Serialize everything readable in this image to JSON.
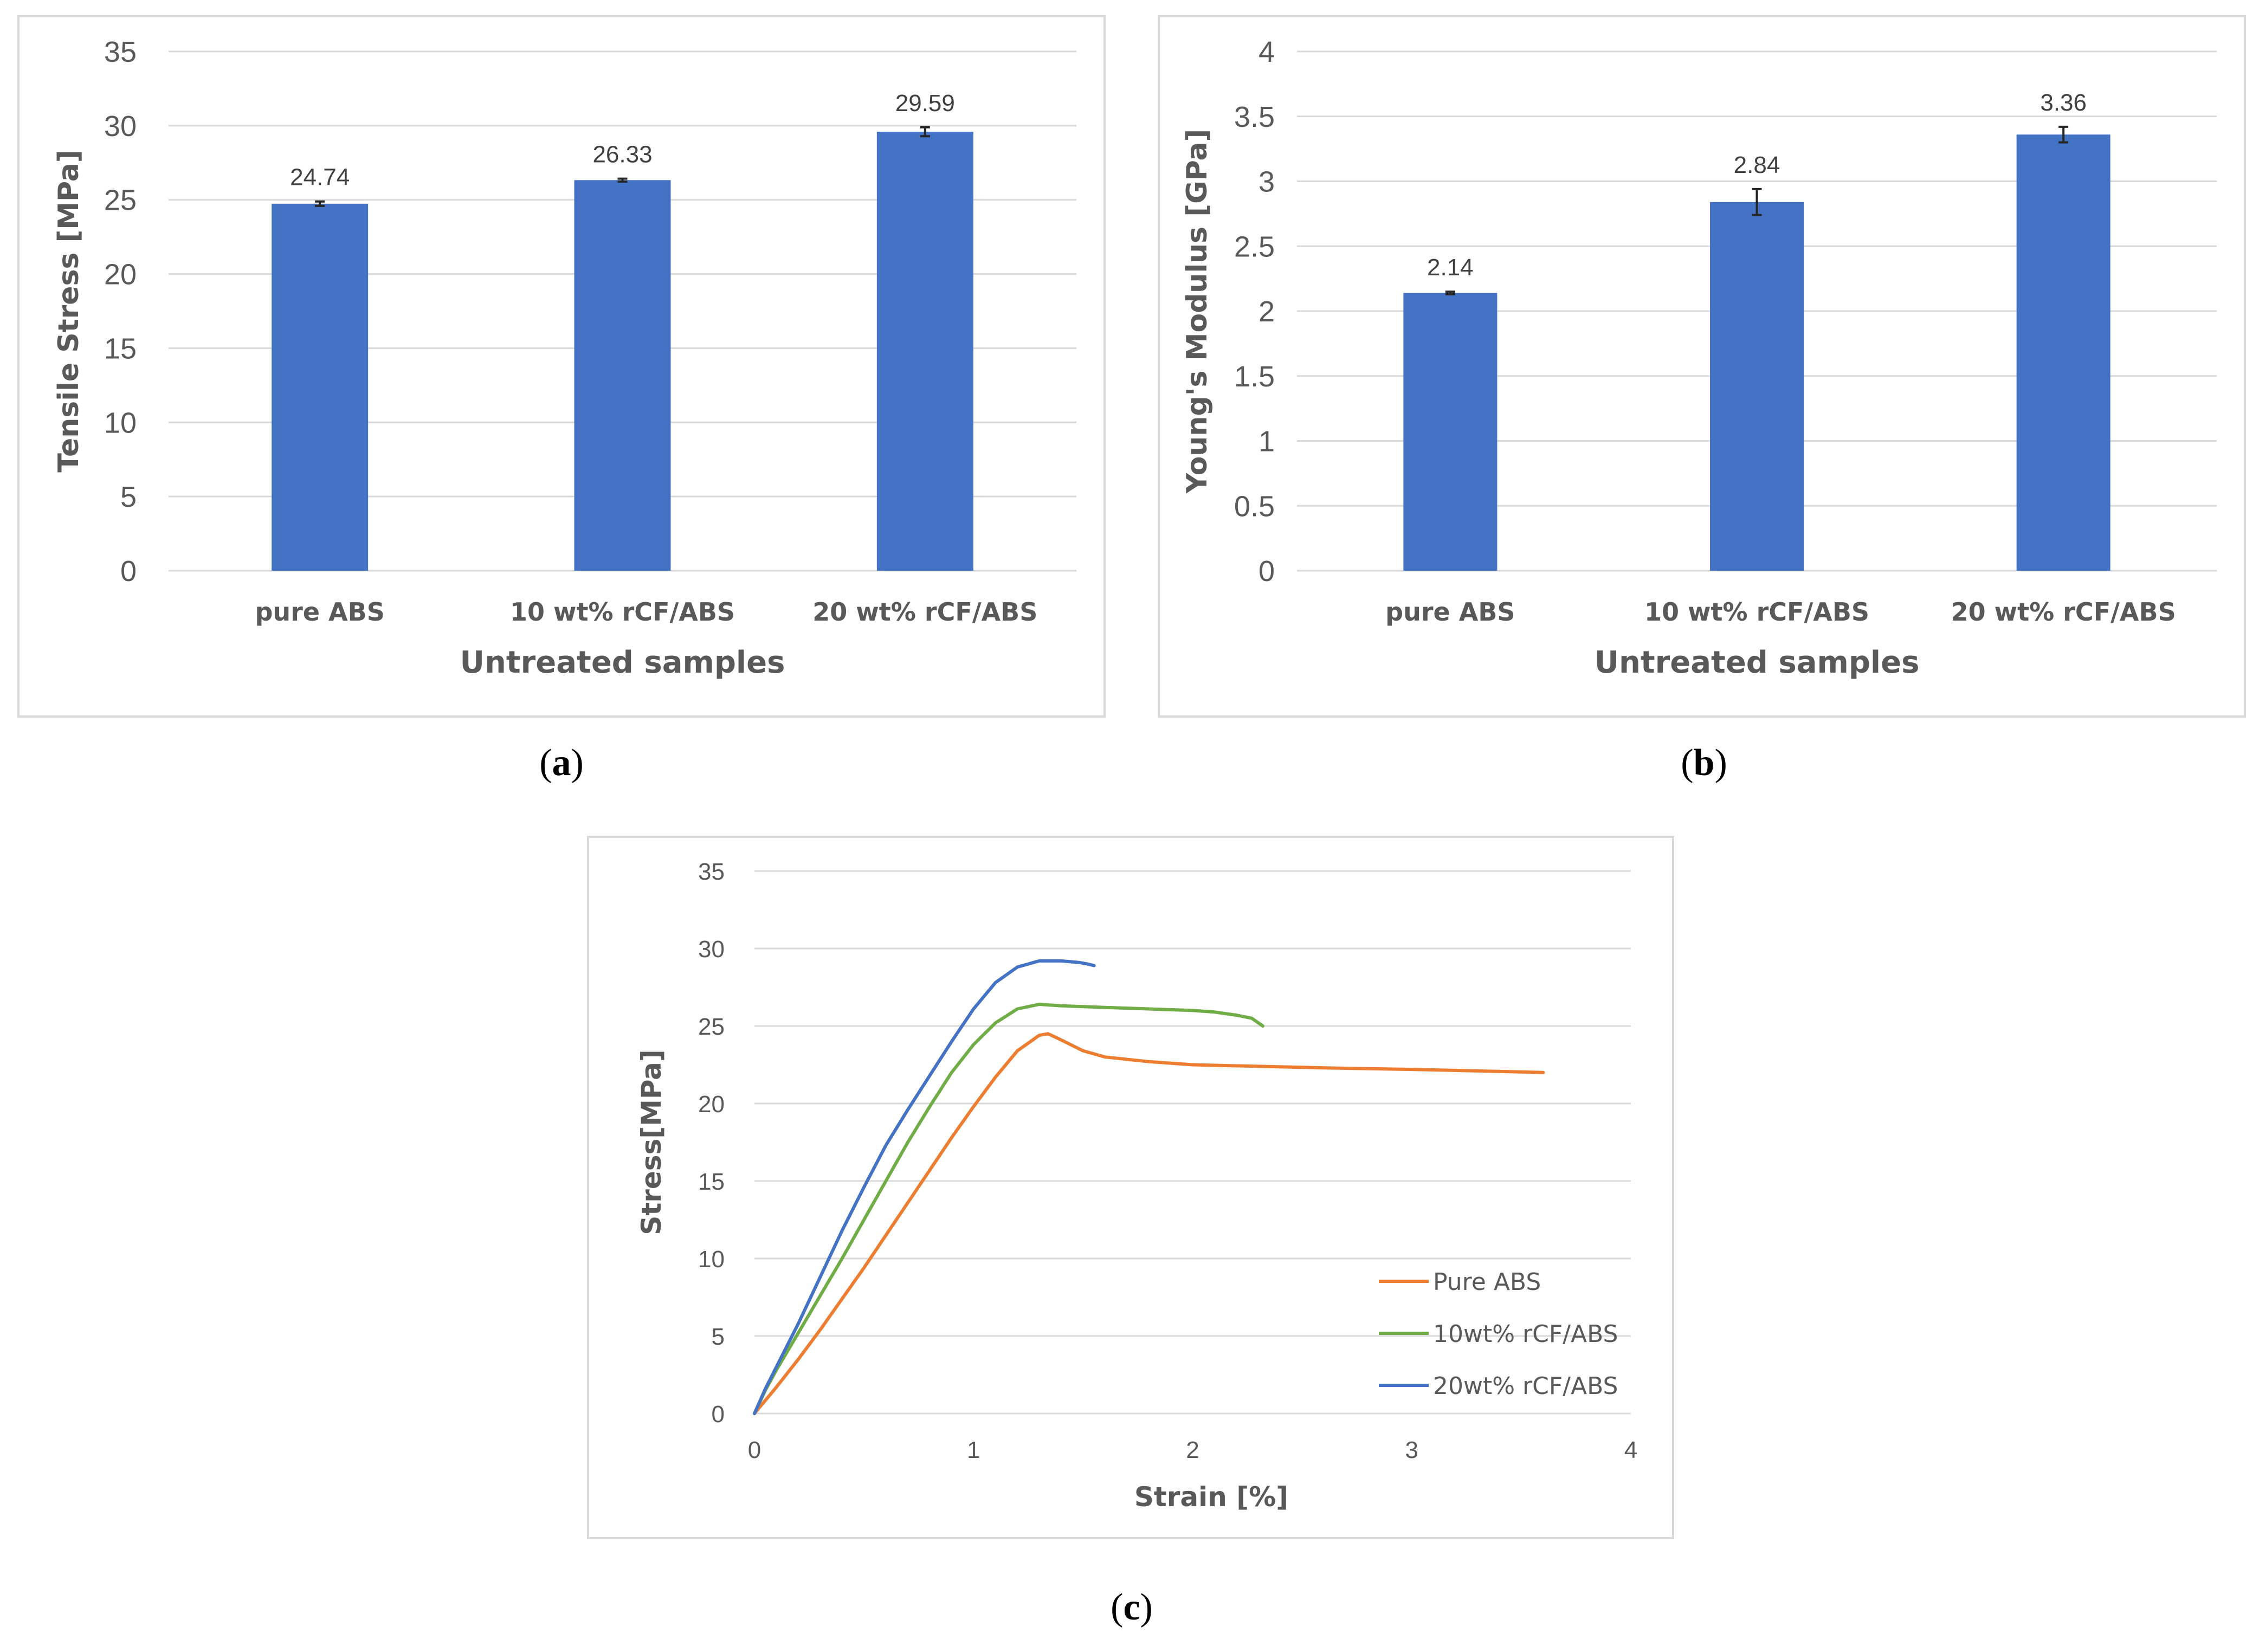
{
  "colors": {
    "bar": "#4472c4",
    "gridline": "#d9d9d9",
    "axis_text": "#595959",
    "pure_abs": "#ed7d31",
    "rcf10": "#70ad47",
    "rcf20": "#4472c4"
  },
  "sublabels": {
    "a": {
      "open": "(",
      "letter": "a",
      "close": ")"
    },
    "b": {
      "open": "(",
      "letter": "b",
      "close": ")"
    },
    "c": {
      "open": "(",
      "letter": "c",
      "close": ")"
    }
  },
  "chart_data": [
    {
      "id": "a",
      "type": "bar",
      "categories": [
        "pure ABS",
        "10 wt% rCF/ABS",
        "20 wt% rCF/ABS"
      ],
      "values": [
        24.74,
        26.33,
        29.59
      ],
      "data_labels": [
        "24.74",
        "26.33",
        "29.59"
      ],
      "error": [
        0.15,
        0.1,
        0.3
      ],
      "xlabel": "Untreated samples",
      "ylabel": "Tensile Stress [MPa]",
      "ylim": [
        0,
        35
      ],
      "yticks": [
        "0",
        "5",
        "10",
        "15",
        "20",
        "25",
        "30",
        "35"
      ],
      "ytick_values": [
        0,
        5,
        10,
        15,
        20,
        25,
        30,
        35
      ],
      "grid": true
    },
    {
      "id": "b",
      "type": "bar",
      "categories": [
        "pure ABS",
        "10 wt% rCF/ABS",
        "20 wt% rCF/ABS"
      ],
      "values": [
        2.14,
        2.84,
        3.36
      ],
      "data_labels": [
        "2.14",
        "2.84",
        "3.36"
      ],
      "error": [
        0.01,
        0.1,
        0.06
      ],
      "xlabel": "Untreated samples",
      "ylabel": "Young's Modulus [GPa]",
      "ylim": [
        0,
        4
      ],
      "yticks": [
        "0",
        "0.5",
        "1",
        "1.5",
        "2",
        "2.5",
        "3",
        "3.5",
        "4"
      ],
      "ytick_values": [
        0,
        0.5,
        1,
        1.5,
        2,
        2.5,
        3,
        3.5,
        4
      ],
      "grid": true
    },
    {
      "id": "c",
      "type": "line",
      "xlabel": "Strain [%]",
      "ylabel": "Stress[MPa]",
      "xlim": [
        0,
        4
      ],
      "ylim": [
        0,
        35
      ],
      "xticks": [
        "0",
        "1",
        "2",
        "3",
        "4"
      ],
      "xtick_values": [
        0,
        1,
        2,
        3,
        4
      ],
      "yticks": [
        "0",
        "5",
        "10",
        "15",
        "20",
        "25",
        "30",
        "35"
      ],
      "ytick_values": [
        0,
        5,
        10,
        15,
        20,
        25,
        30,
        35
      ],
      "grid": true,
      "legend_position": "bottom-right",
      "series": [
        {
          "name": "Pure ABS",
          "color": "#ed7d31",
          "points": [
            [
              0,
              0
            ],
            [
              0.1,
              1.7
            ],
            [
              0.2,
              3.5
            ],
            [
              0.3,
              5.4
            ],
            [
              0.4,
              7.4
            ],
            [
              0.5,
              9.4
            ],
            [
              0.6,
              11.5
            ],
            [
              0.7,
              13.6
            ],
            [
              0.8,
              15.7
            ],
            [
              0.9,
              17.8
            ],
            [
              1.0,
              19.8
            ],
            [
              1.1,
              21.7
            ],
            [
              1.2,
              23.4
            ],
            [
              1.3,
              24.4
            ],
            [
              1.34,
              24.5
            ],
            [
              1.4,
              24.1
            ],
            [
              1.5,
              23.4
            ],
            [
              1.6,
              23.0
            ],
            [
              1.8,
              22.7
            ],
            [
              2.0,
              22.5
            ],
            [
              2.3,
              22.4
            ],
            [
              2.6,
              22.3
            ],
            [
              3.0,
              22.2
            ],
            [
              3.3,
              22.1
            ],
            [
              3.6,
              22.0
            ]
          ]
        },
        {
          "name": "10wt% rCF/ABS",
          "color": "#70ad47",
          "points": [
            [
              0,
              0
            ],
            [
              0.05,
              1.5
            ],
            [
              0.1,
              2.8
            ],
            [
              0.2,
              5.2
            ],
            [
              0.3,
              7.6
            ],
            [
              0.4,
              10.0
            ],
            [
              0.5,
              12.5
            ],
            [
              0.6,
              15.0
            ],
            [
              0.7,
              17.5
            ],
            [
              0.8,
              19.8
            ],
            [
              0.9,
              22.0
            ],
            [
              1.0,
              23.8
            ],
            [
              1.1,
              25.2
            ],
            [
              1.2,
              26.1
            ],
            [
              1.3,
              26.4
            ],
            [
              1.4,
              26.3
            ],
            [
              1.6,
              26.2
            ],
            [
              1.8,
              26.1
            ],
            [
              2.0,
              26.0
            ],
            [
              2.1,
              25.9
            ],
            [
              2.2,
              25.7
            ],
            [
              2.27,
              25.5
            ],
            [
              2.3,
              25.2
            ],
            [
              2.32,
              25.0
            ]
          ]
        },
        {
          "name": "20wt% rCF/ABS",
          "color": "#4472c4",
          "points": [
            [
              0,
              0
            ],
            [
              0.05,
              1.6
            ],
            [
              0.1,
              3.0
            ],
            [
              0.2,
              5.8
            ],
            [
              0.3,
              8.8
            ],
            [
              0.4,
              11.8
            ],
            [
              0.5,
              14.6
            ],
            [
              0.6,
              17.3
            ],
            [
              0.7,
              19.6
            ],
            [
              0.8,
              21.8
            ],
            [
              0.9,
              24.0
            ],
            [
              1.0,
              26.1
            ],
            [
              1.1,
              27.8
            ],
            [
              1.2,
              28.8
            ],
            [
              1.3,
              29.2
            ],
            [
              1.4,
              29.2
            ],
            [
              1.48,
              29.1
            ],
            [
              1.52,
              29.0
            ],
            [
              1.55,
              28.9
            ]
          ]
        }
      ]
    }
  ]
}
